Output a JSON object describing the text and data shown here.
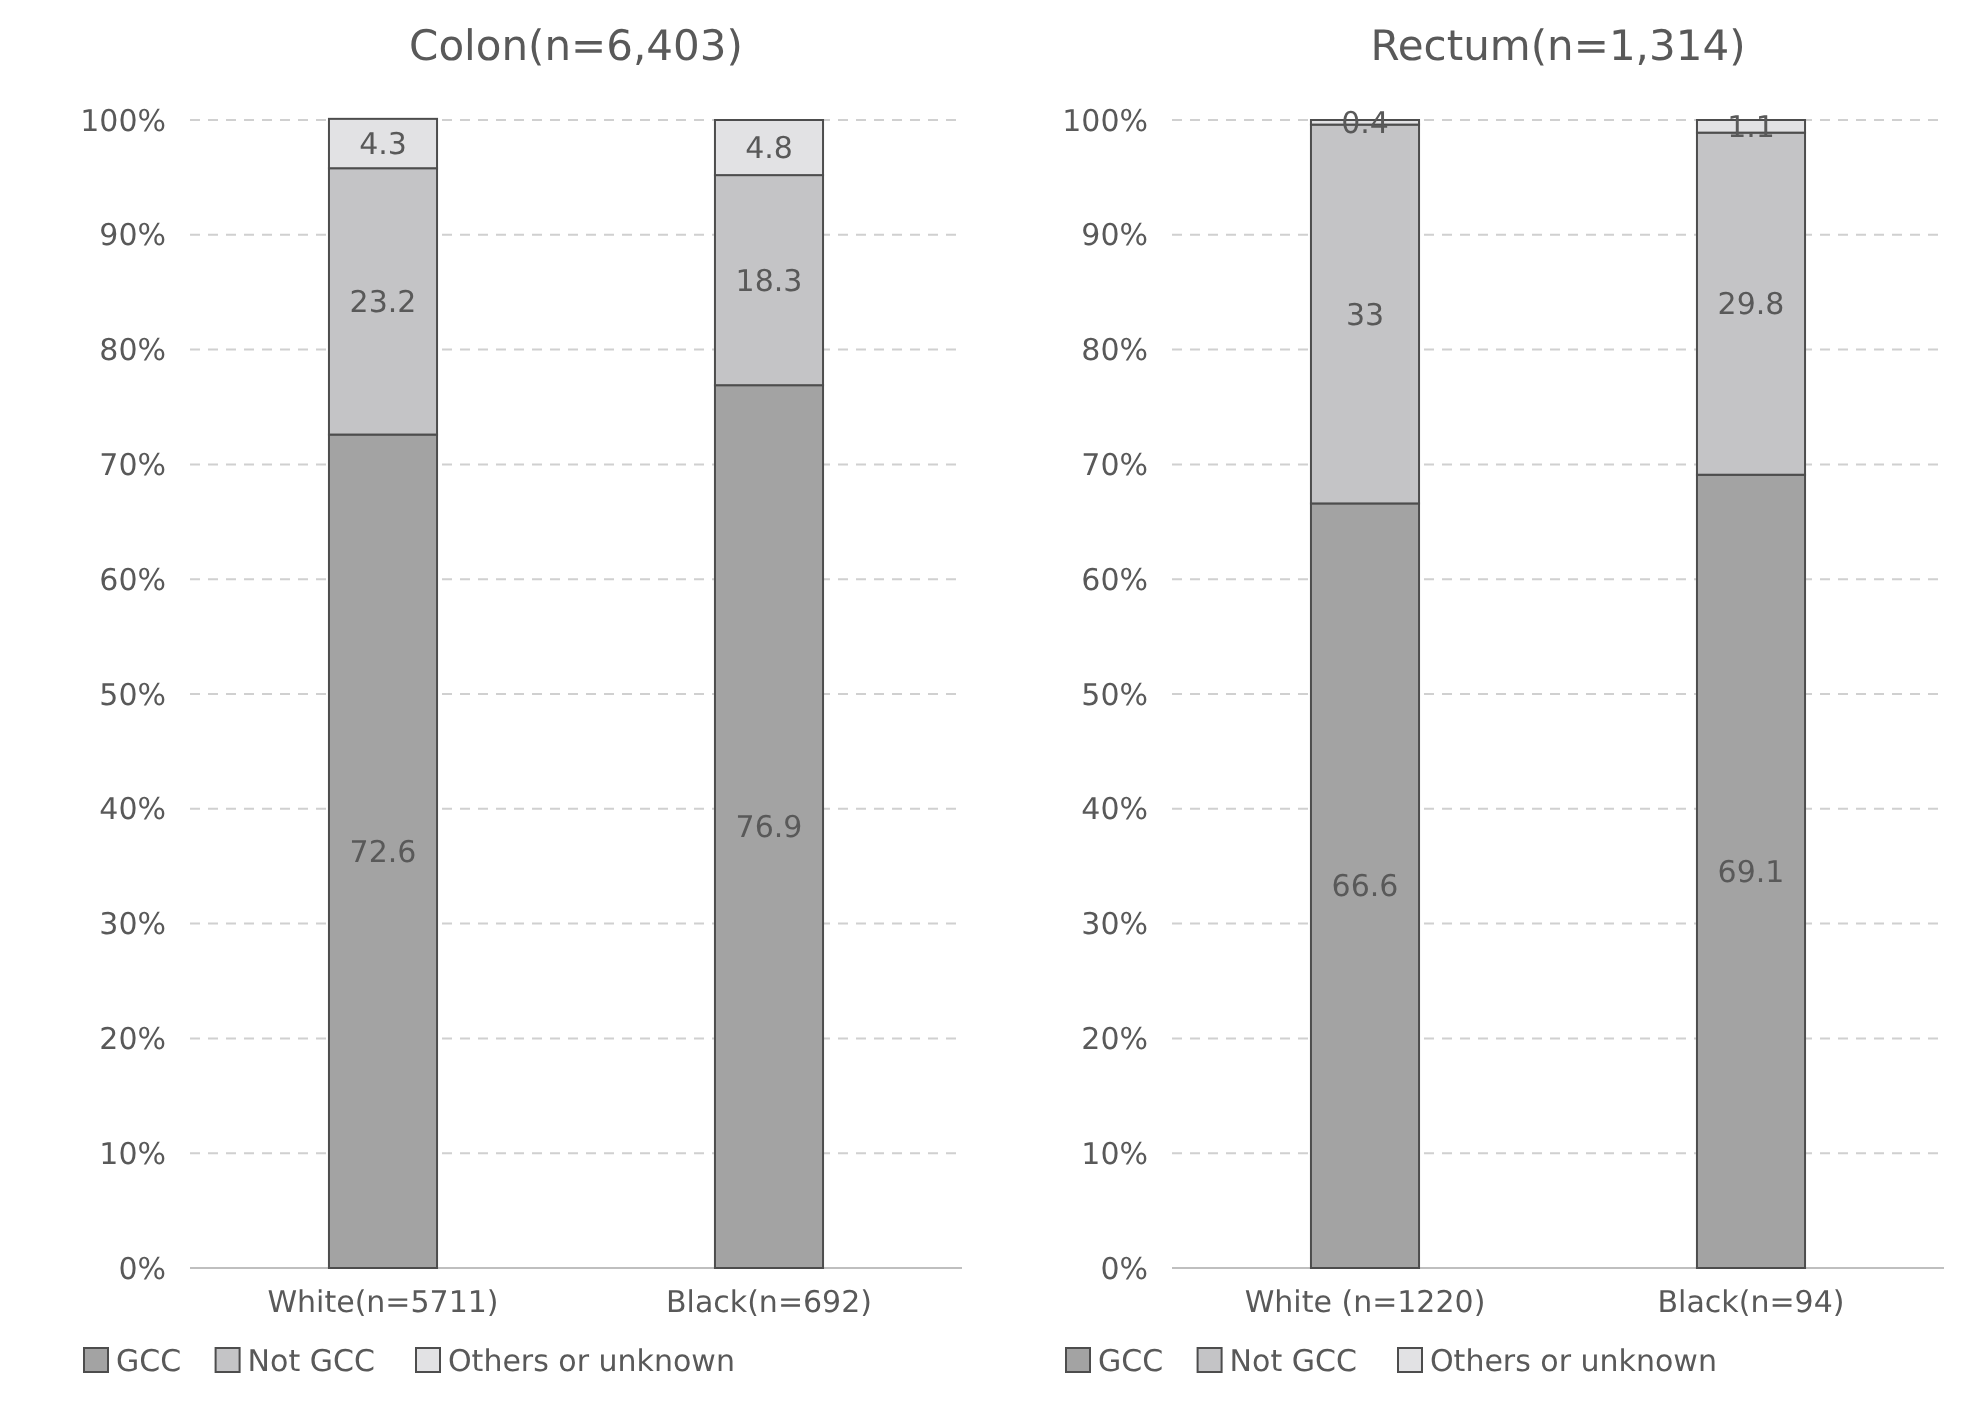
{
  "chart_data": [
    {
      "type": "bar",
      "title": "Colon(n=6,403)",
      "categories": [
        "White(n=5711)",
        "Black(n=692)"
      ],
      "stacked": true,
      "data_labels": true,
      "grid": "y",
      "legend": "bottom",
      "ylim": [
        0,
        100
      ],
      "yticks": [
        {
          "value": 0,
          "label": "0%"
        },
        {
          "value": 10,
          "label": "10%"
        },
        {
          "value": 20,
          "label": "20%"
        },
        {
          "value": 30,
          "label": "30%"
        },
        {
          "value": 40,
          "label": "40%"
        },
        {
          "value": 50,
          "label": "50%"
        },
        {
          "value": 60,
          "label": "60%"
        },
        {
          "value": 70,
          "label": "70%"
        },
        {
          "value": 80,
          "label": "80%"
        },
        {
          "value": 90,
          "label": "90%"
        },
        {
          "value": 100,
          "label": "100%"
        }
      ],
      "series": [
        {
          "name": "GCC",
          "color": "#a3a3a3",
          "values": [
            72.6,
            76.9
          ]
        },
        {
          "name": "Not GCC",
          "color": "#c4c4c6",
          "values": [
            23.2,
            18.3
          ]
        },
        {
          "name": "Others or unknown",
          "color": "#e2e2e4",
          "values": [
            4.3,
            4.8
          ]
        }
      ]
    },
    {
      "type": "bar",
      "title": "Rectum(n=1,314)",
      "categories": [
        "White (n=1220)",
        "Black(n=94)"
      ],
      "stacked": true,
      "data_labels": true,
      "grid": "y",
      "legend": "bottom",
      "ylim": [
        0,
        100
      ],
      "yticks": [
        {
          "value": 0,
          "label": "0%"
        },
        {
          "value": 10,
          "label": "10%"
        },
        {
          "value": 20,
          "label": "20%"
        },
        {
          "value": 30,
          "label": "30%"
        },
        {
          "value": 40,
          "label": "40%"
        },
        {
          "value": 50,
          "label": "50%"
        },
        {
          "value": 60,
          "label": "60%"
        },
        {
          "value": 70,
          "label": "70%"
        },
        {
          "value": 80,
          "label": "80%"
        },
        {
          "value": 90,
          "label": "90%"
        },
        {
          "value": 100,
          "label": "100%"
        }
      ],
      "series": [
        {
          "name": "GCC",
          "color": "#a3a3a3",
          "values": [
            66.6,
            69.1
          ]
        },
        {
          "name": "Not GCC",
          "color": "#c4c4c6",
          "values": [
            33,
            29.8
          ]
        },
        {
          "name": "Others or unknown",
          "color": "#e2e2e4",
          "values": [
            0.4,
            1.1
          ]
        }
      ]
    }
  ]
}
